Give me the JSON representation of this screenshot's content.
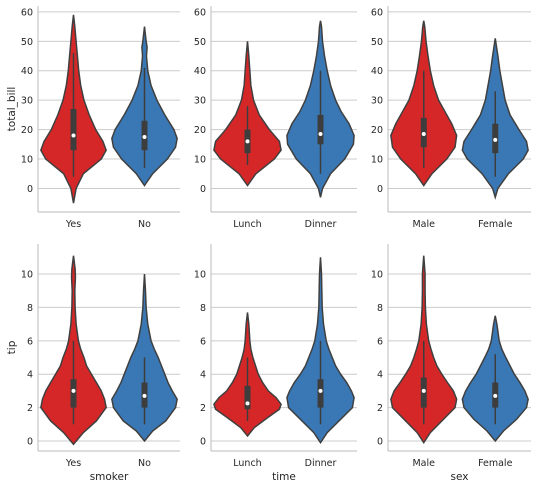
{
  "chart_data": [
    {
      "type": "violin",
      "xlabel": "",
      "ylabel": "total_bill",
      "ylim": [
        -8,
        62
      ],
      "yticks": [
        0,
        10,
        20,
        30,
        40,
        50,
        60
      ],
      "categories": [
        "Yes",
        "No"
      ],
      "colors": [
        "#d62728",
        "#3a78b5"
      ],
      "violins": [
        {
          "range": [
            -5,
            59
          ],
          "profile": [
            [
              -5,
              0
            ],
            [
              0,
              0.08
            ],
            [
              5,
              0.3
            ],
            [
              10,
              0.85
            ],
            [
              13,
              1.0
            ],
            [
              16,
              0.9
            ],
            [
              20,
              0.68
            ],
            [
              25,
              0.48
            ],
            [
              30,
              0.32
            ],
            [
              35,
              0.22
            ],
            [
              40,
              0.16
            ],
            [
              45,
              0.12
            ],
            [
              50,
              0.08
            ],
            [
              55,
              0.04
            ],
            [
              59,
              0
            ]
          ],
          "q1": 13,
          "median": 18,
          "q3": 27,
          "whisker": [
            4,
            46
          ]
        },
        {
          "range": [
            1,
            55
          ],
          "profile": [
            [
              1,
              0
            ],
            [
              5,
              0.25
            ],
            [
              10,
              0.7
            ],
            [
              14,
              0.95
            ],
            [
              17,
              1.0
            ],
            [
              20,
              0.9
            ],
            [
              25,
              0.62
            ],
            [
              30,
              0.38
            ],
            [
              35,
              0.2
            ],
            [
              40,
              0.1
            ],
            [
              45,
              0.06
            ],
            [
              48,
              0.08
            ],
            [
              50,
              0.05
            ],
            [
              55,
              0
            ]
          ],
          "q1": 13,
          "median": 17.5,
          "q3": 23,
          "whisker": [
            7,
            41
          ]
        }
      ]
    },
    {
      "type": "violin",
      "xlabel": "",
      "ylabel": "",
      "ylim": [
        -8,
        62
      ],
      "yticks": [
        0,
        10,
        20,
        30,
        40,
        50,
        60
      ],
      "categories": [
        "Lunch",
        "Dinner"
      ],
      "colors": [
        "#d62728",
        "#3a78b5"
      ],
      "violins": [
        {
          "range": [
            1,
            50
          ],
          "profile": [
            [
              1,
              0
            ],
            [
              5,
              0.25
            ],
            [
              10,
              0.8
            ],
            [
              13,
              1.0
            ],
            [
              16,
              0.95
            ],
            [
              20,
              0.65
            ],
            [
              25,
              0.35
            ],
            [
              30,
              0.18
            ],
            [
              35,
              0.1
            ],
            [
              40,
              0.07
            ],
            [
              45,
              0.04
            ],
            [
              50,
              0
            ]
          ],
          "q1": 12,
          "median": 16,
          "q3": 20,
          "whisker": [
            8,
            28
          ]
        },
        {
          "range": [
            -3,
            57
          ],
          "profile": [
            [
              -3,
              0
            ],
            [
              0,
              0.06
            ],
            [
              5,
              0.3
            ],
            [
              10,
              0.72
            ],
            [
              15,
              0.98
            ],
            [
              18,
              1.0
            ],
            [
              22,
              0.85
            ],
            [
              26,
              0.62
            ],
            [
              30,
              0.45
            ],
            [
              35,
              0.3
            ],
            [
              40,
              0.2
            ],
            [
              45,
              0.12
            ],
            [
              50,
              0.06
            ],
            [
              55,
              0.03
            ],
            [
              57,
              0
            ]
          ],
          "q1": 15,
          "median": 18.5,
          "q3": 25,
          "whisker": [
            5,
            40
          ]
        }
      ]
    },
    {
      "type": "violin",
      "xlabel": "",
      "ylabel": "",
      "ylim": [
        -8,
        62
      ],
      "yticks": [
        0,
        10,
        20,
        30,
        40,
        50,
        60
      ],
      "categories": [
        "Male",
        "Female"
      ],
      "colors": [
        "#d62728",
        "#3a78b5"
      ],
      "violins": [
        {
          "range": [
            1,
            57
          ],
          "profile": [
            [
              1,
              0
            ],
            [
              5,
              0.25
            ],
            [
              10,
              0.7
            ],
            [
              14,
              0.95
            ],
            [
              18,
              1.0
            ],
            [
              22,
              0.85
            ],
            [
              26,
              0.65
            ],
            [
              30,
              0.45
            ],
            [
              35,
              0.3
            ],
            [
              40,
              0.2
            ],
            [
              45,
              0.13
            ],
            [
              50,
              0.07
            ],
            [
              55,
              0.03
            ],
            [
              57,
              0
            ]
          ],
          "q1": 14,
          "median": 18.5,
          "q3": 24,
          "whisker": [
            7,
            40
          ]
        },
        {
          "range": [
            -3,
            51
          ],
          "profile": [
            [
              -3,
              0
            ],
            [
              0,
              0.08
            ],
            [
              5,
              0.4
            ],
            [
              10,
              0.85
            ],
            [
              13,
              1.0
            ],
            [
              16,
              0.95
            ],
            [
              20,
              0.72
            ],
            [
              25,
              0.45
            ],
            [
              30,
              0.3
            ],
            [
              35,
              0.22
            ],
            [
              40,
              0.14
            ],
            [
              45,
              0.08
            ],
            [
              51,
              0
            ]
          ],
          "q1": 12,
          "median": 16.5,
          "q3": 22,
          "whisker": [
            4,
            33
          ]
        }
      ]
    },
    {
      "type": "violin",
      "xlabel": "smoker",
      "ylabel": "tip",
      "ylim": [
        -0.6,
        11.8
      ],
      "yticks": [
        0,
        2,
        4,
        6,
        8,
        10
      ],
      "categories": [
        "Yes",
        "No"
      ],
      "colors": [
        "#d62728",
        "#3a78b5"
      ],
      "violins": [
        {
          "range": [
            -0.2,
            11.1
          ],
          "profile": [
            [
              -0.2,
              0
            ],
            [
              0.5,
              0.3
            ],
            [
              1.2,
              0.7
            ],
            [
              2,
              1.0
            ],
            [
              2.5,
              0.95
            ],
            [
              3,
              0.85
            ],
            [
              3.5,
              0.7
            ],
            [
              4,
              0.55
            ],
            [
              4.5,
              0.4
            ],
            [
              5,
              0.32
            ],
            [
              5.5,
              0.22
            ],
            [
              6,
              0.15
            ],
            [
              7,
              0.08
            ],
            [
              8,
              0.05
            ],
            [
              9,
              0.04
            ],
            [
              9.8,
              0.06
            ],
            [
              10.3,
              0.05
            ],
            [
              11.1,
              0
            ]
          ],
          "q1": 2,
          "median": 3,
          "q3": 3.7,
          "whisker": [
            1,
            6
          ]
        },
        {
          "range": [
            0,
            10
          ],
          "profile": [
            [
              0,
              0
            ],
            [
              0.6,
              0.25
            ],
            [
              1.2,
              0.65
            ],
            [
              2,
              0.95
            ],
            [
              2.5,
              1.0
            ],
            [
              3,
              0.85
            ],
            [
              3.5,
              0.72
            ],
            [
              4,
              0.62
            ],
            [
              4.5,
              0.52
            ],
            [
              5,
              0.42
            ],
            [
              5.5,
              0.3
            ],
            [
              6,
              0.2
            ],
            [
              7,
              0.1
            ],
            [
              8,
              0.05
            ],
            [
              9,
              0.03
            ],
            [
              10,
              0
            ]
          ],
          "q1": 2,
          "median": 2.7,
          "q3": 3.5,
          "whisker": [
            1,
            5
          ]
        }
      ]
    },
    {
      "type": "violin",
      "xlabel": "time",
      "ylabel": "",
      "ylim": [
        -0.6,
        11.8
      ],
      "yticks": [
        0,
        2,
        4,
        6,
        8,
        10
      ],
      "categories": [
        "Lunch",
        "Dinner"
      ],
      "colors": [
        "#d62728",
        "#3a78b5"
      ],
      "violins": [
        {
          "range": [
            0.3,
            7.7
          ],
          "profile": [
            [
              0.3,
              0
            ],
            [
              0.8,
              0.2
            ],
            [
              1.4,
              0.6
            ],
            [
              1.9,
              0.95
            ],
            [
              2.2,
              1.0
            ],
            [
              2.6,
              0.85
            ],
            [
              3,
              0.62
            ],
            [
              3.5,
              0.45
            ],
            [
              4,
              0.32
            ],
            [
              4.5,
              0.24
            ],
            [
              5,
              0.16
            ],
            [
              5.5,
              0.1
            ],
            [
              6,
              0.07
            ],
            [
              7,
              0.04
            ],
            [
              7.7,
              0
            ]
          ],
          "q1": 1.9,
          "median": 2.25,
          "q3": 3.3,
          "whisker": [
            1.2,
            5
          ]
        },
        {
          "range": [
            -0.1,
            11
          ],
          "profile": [
            [
              -0.1,
              0
            ],
            [
              0.5,
              0.2
            ],
            [
              1.2,
              0.55
            ],
            [
              2,
              0.95
            ],
            [
              2.6,
              1.0
            ],
            [
              3,
              0.92
            ],
            [
              3.5,
              0.78
            ],
            [
              4,
              0.6
            ],
            [
              4.5,
              0.45
            ],
            [
              5,
              0.35
            ],
            [
              5.5,
              0.25
            ],
            [
              6,
              0.17
            ],
            [
              7,
              0.09
            ],
            [
              8,
              0.05
            ],
            [
              9,
              0.04
            ],
            [
              10,
              0.03
            ],
            [
              11,
              0
            ]
          ],
          "q1": 2,
          "median": 3,
          "q3": 3.7,
          "whisker": [
            1,
            6
          ]
        }
      ]
    },
    {
      "type": "violin",
      "xlabel": "sex",
      "ylabel": "",
      "ylim": [
        -0.6,
        11.8
      ],
      "yticks": [
        0,
        2,
        4,
        6,
        8,
        10
      ],
      "categories": [
        "Male",
        "Female"
      ],
      "colors": [
        "#d62728",
        "#3a78b5"
      ],
      "violins": [
        {
          "range": [
            -0.1,
            11.1
          ],
          "profile": [
            [
              -0.1,
              0
            ],
            [
              0.5,
              0.2
            ],
            [
              1.2,
              0.55
            ],
            [
              2,
              0.95
            ],
            [
              2.5,
              1.0
            ],
            [
              3,
              0.9
            ],
            [
              3.5,
              0.72
            ],
            [
              4,
              0.55
            ],
            [
              4.5,
              0.4
            ],
            [
              5,
              0.3
            ],
            [
              5.5,
              0.22
            ],
            [
              6,
              0.15
            ],
            [
              7,
              0.08
            ],
            [
              8,
              0.05
            ],
            [
              9,
              0.04
            ],
            [
              10,
              0.04
            ],
            [
              11.1,
              0
            ]
          ],
          "q1": 2,
          "median": 3,
          "q3": 3.8,
          "whisker": [
            1,
            6
          ]
        },
        {
          "range": [
            0,
            7.5
          ],
          "profile": [
            [
              0,
              0
            ],
            [
              0.6,
              0.25
            ],
            [
              1.3,
              0.65
            ],
            [
              2,
              0.95
            ],
            [
              2.5,
              1.0
            ],
            [
              3,
              0.9
            ],
            [
              3.5,
              0.75
            ],
            [
              4,
              0.58
            ],
            [
              4.5,
              0.45
            ],
            [
              5,
              0.32
            ],
            [
              5.5,
              0.2
            ],
            [
              6,
              0.12
            ],
            [
              7,
              0.05
            ],
            [
              7.5,
              0
            ]
          ],
          "q1": 2,
          "median": 2.7,
          "q3": 3.5,
          "whisker": [
            1,
            5.2
          ]
        }
      ]
    }
  ]
}
